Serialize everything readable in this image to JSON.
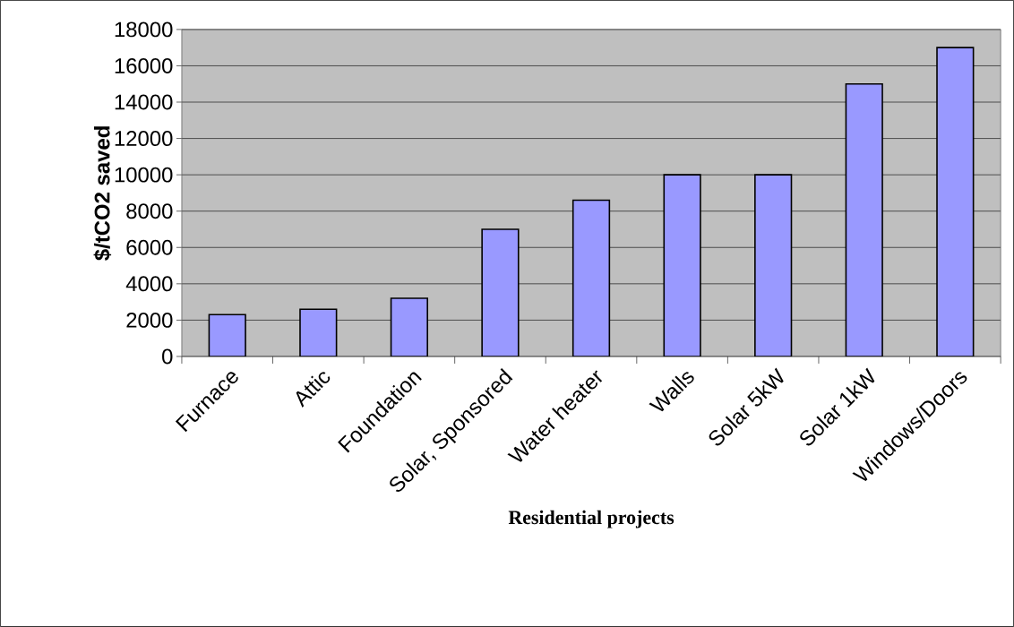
{
  "chart_data": {
    "type": "bar",
    "xlabel": "Residential projects",
    "ylabel": "$/tCO2 saved",
    "categories": [
      "Furnace",
      "Attic",
      "Foundation",
      "Solar, Sponsored",
      "Water heater",
      "Walls",
      "Solar 5kW",
      "Solar 1kW",
      "Windows/Doors"
    ],
    "values": [
      2300,
      2600,
      3200,
      7000,
      8600,
      10000,
      10000,
      15000,
      17000
    ],
    "color": "#9999ff",
    "ylim": [
      0,
      18000
    ],
    "yticks": [
      0,
      2000,
      4000,
      6000,
      8000,
      10000,
      12000,
      14000,
      16000,
      18000
    ],
    "grid": "y"
  }
}
